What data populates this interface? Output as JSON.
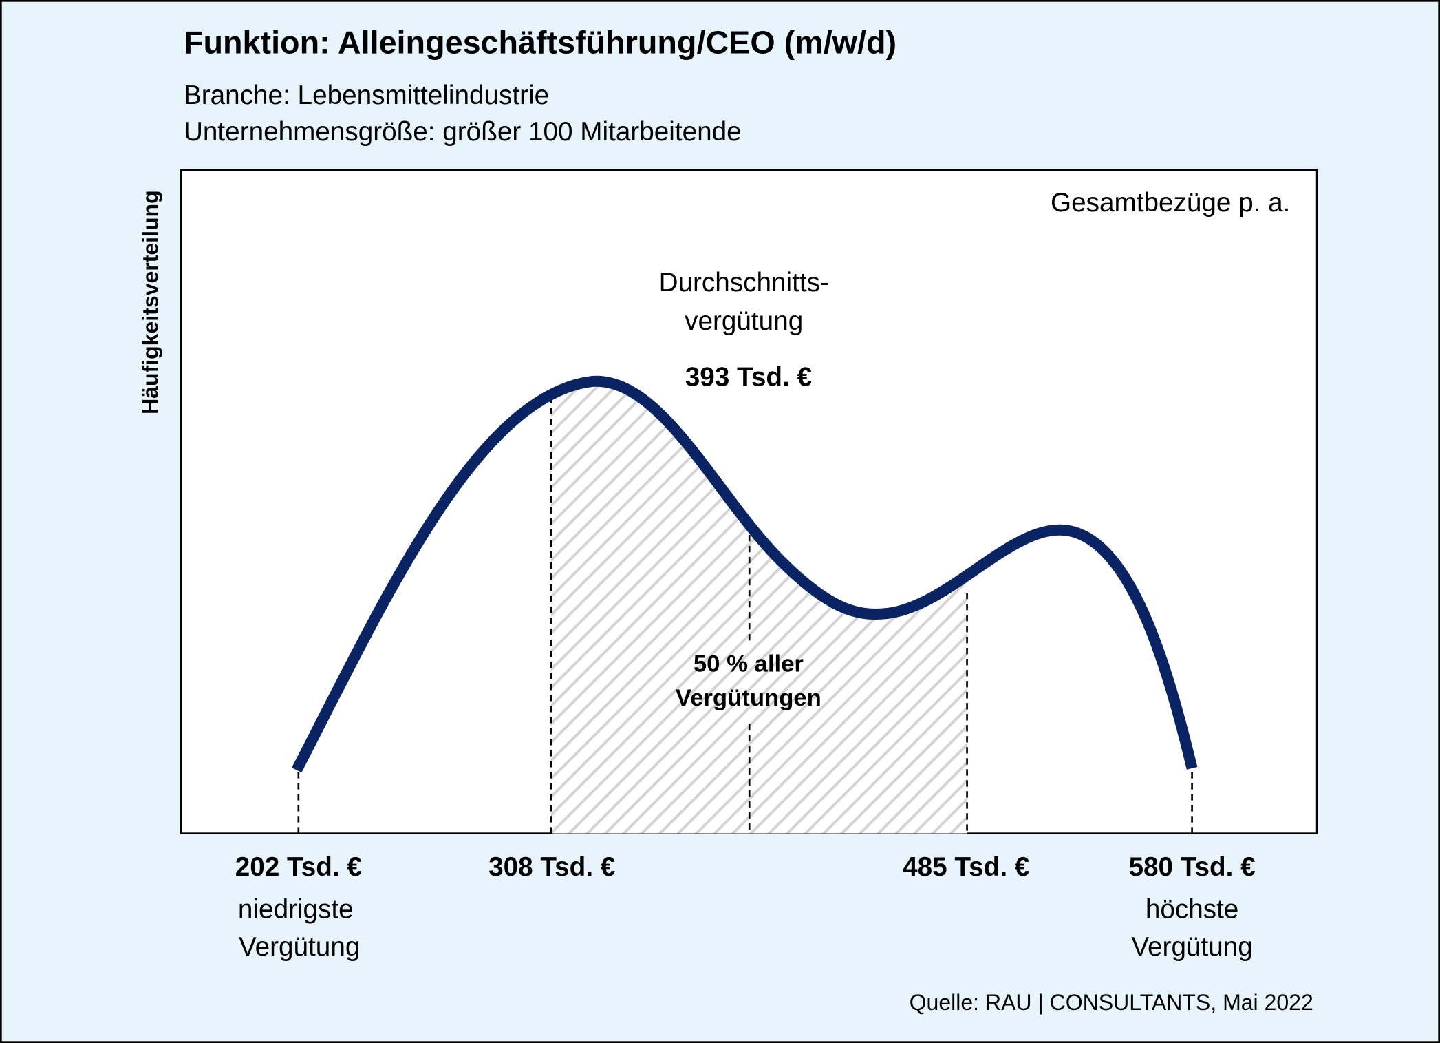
{
  "header": {
    "title": "Funktion: Alleingeschäftsführung/CEO (m/w/d)",
    "subtitle_lines": [
      "Branche: Lebensmittelindustrie",
      "Unternehmensgröße: größer 100 Mitarbeitende"
    ]
  },
  "diagram": {
    "y_axis_label": "Häufigkeitsverteilung",
    "corner_label": "Gesamtbezüge p. a.",
    "average": {
      "label_lines": [
        "Durchschnitts-",
        "vergütung"
      ],
      "value": "393 Tsd. €"
    },
    "middle_half": {
      "label_lines": [
        "50 % aller",
        "Vergütungen"
      ]
    },
    "markers": [
      {
        "value": "202 Tsd. €",
        "label_lines": [
          "niedrigste",
          "Vergütung"
        ]
      },
      {
        "value": "308 Tsd. €"
      },
      {
        "value": "485 Tsd. €"
      },
      {
        "value": "580 Tsd. €",
        "label_lines": [
          "höchste",
          "Vergütung"
        ]
      }
    ]
  },
  "footer": {
    "source": "Quelle: RAU | CONSULTANTS, Mai 2022"
  }
}
